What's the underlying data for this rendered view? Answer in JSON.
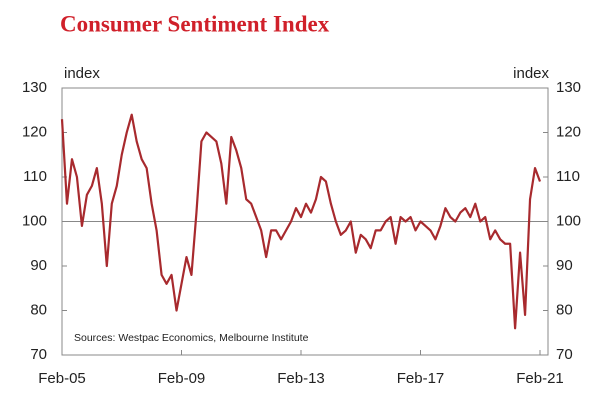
{
  "chart_data": {
    "type": "line",
    "title": "Consumer Sentiment Index",
    "ylabel": "index",
    "y2label": "index",
    "note": "Sources: Westpac Economics, Melbourne Institute",
    "x": [
      "Feb-05",
      "Apr-05",
      "Jun-05",
      "Aug-05",
      "Oct-05",
      "Dec-05",
      "Feb-06",
      "Apr-06",
      "Jun-06",
      "Aug-06",
      "Oct-06",
      "Dec-06",
      "Feb-07",
      "Apr-07",
      "Jun-07",
      "Aug-07",
      "Oct-07",
      "Dec-07",
      "Feb-08",
      "Apr-08",
      "Jun-08",
      "Aug-08",
      "Oct-08",
      "Dec-08",
      "Feb-09",
      "Apr-09",
      "Jun-09",
      "Aug-09",
      "Oct-09",
      "Dec-09",
      "Feb-10",
      "Apr-10",
      "Jun-10",
      "Aug-10",
      "Oct-10",
      "Dec-10",
      "Feb-11",
      "Apr-11",
      "Jun-11",
      "Aug-11",
      "Oct-11",
      "Dec-11",
      "Feb-12",
      "Apr-12",
      "Jun-12",
      "Aug-12",
      "Oct-12",
      "Dec-12",
      "Feb-13",
      "Apr-13",
      "Jun-13",
      "Aug-13",
      "Oct-13",
      "Dec-13",
      "Feb-14",
      "Apr-14",
      "Jun-14",
      "Aug-14",
      "Oct-14",
      "Dec-14",
      "Feb-15",
      "Apr-15",
      "Jun-15",
      "Aug-15",
      "Oct-15",
      "Dec-15",
      "Feb-16",
      "Apr-16",
      "Jun-16",
      "Aug-16",
      "Oct-16",
      "Dec-16",
      "Feb-17",
      "Apr-17",
      "Jun-17",
      "Aug-17",
      "Oct-17",
      "Dec-17",
      "Feb-18",
      "Apr-18",
      "Jun-18",
      "Aug-18",
      "Oct-18",
      "Dec-18",
      "Feb-19",
      "Apr-19",
      "Jun-19",
      "Aug-19",
      "Oct-19",
      "Dec-19",
      "Feb-20",
      "Apr-20",
      "Jun-20",
      "Aug-20",
      "Oct-20",
      "Dec-20",
      "Feb-21"
    ],
    "series": [
      {
        "color": "#a82a2e",
        "values": [
          123,
          104,
          114,
          110,
          99,
          106,
          108,
          112,
          104,
          90,
          104,
          108,
          115,
          120,
          124,
          118,
          114,
          112,
          104,
          98,
          88,
          86,
          88,
          80,
          86,
          92,
          88,
          102,
          118,
          120,
          119,
          118,
          113,
          104,
          119,
          116,
          112,
          105,
          104,
          101,
          98,
          92,
          98,
          98,
          96,
          98,
          100,
          103,
          101,
          104,
          102,
          105,
          110,
          109,
          104,
          100,
          97,
          98,
          100,
          93,
          97,
          96,
          94,
          98,
          98,
          100,
          101,
          95,
          101,
          100,
          101,
          98,
          100,
          99,
          98,
          96,
          99,
          103,
          101,
          100,
          102,
          103,
          101,
          104,
          100,
          101,
          96,
          98,
          96,
          95,
          95,
          76,
          93,
          79,
          105,
          112,
          109
        ]
      }
    ],
    "xticks": [
      "Feb-05",
      "Feb-09",
      "Feb-13",
      "Feb-17",
      "Feb-21"
    ],
    "ylim": [
      70,
      130
    ],
    "yticks": [
      70,
      80,
      90,
      100,
      110,
      120,
      130
    ],
    "y2lim": [
      70,
      130
    ],
    "y2ticks": [
      70,
      80,
      90,
      100,
      110,
      120,
      130
    ],
    "hline": 100
  }
}
